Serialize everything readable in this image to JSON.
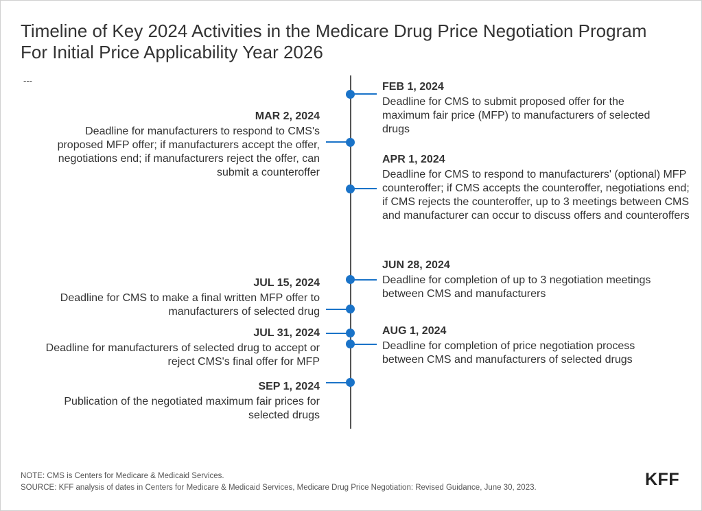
{
  "title_lines": [
    "Timeline of Key 2024 Activities in the Medicare Drug Price Negotiation Program",
    "For Initial Price Applicability Year 2026"
  ],
  "subtitle_placeholder": "---",
  "events": [
    {
      "date": "FEB 1, 2024",
      "side": "right",
      "description": "Deadline for CMS to submit proposed offer for the maximum fair price (MFP) to manufacturers of selected drugs"
    },
    {
      "date": "MAR 2, 2024",
      "side": "left",
      "description": "Deadline for manufacturers to respond to CMS's proposed MFP offer; if manufacturers accept the offer, negotiations end; if manufacturers reject the offer, can submit a counteroffer"
    },
    {
      "date": "APR 1, 2024",
      "side": "right",
      "description": "Deadline for CMS to respond to manufacturers' (optional) MFP counteroffer; if CMS accepts the counteroffer, negotiations end; if CMS rejects the counteroffer, up to 3 meetings between CMS and manufacturer can occur to discuss offers and counteroffers"
    },
    {
      "date": "JUN 28, 2024",
      "side": "right",
      "description": "Deadline for completion of up to 3 negotiation meetings between CMS and manufacturers"
    },
    {
      "date": "JUL 15, 2024",
      "side": "left",
      "description": "Deadline for CMS to make a final written MFP offer to manufacturers of selected drug"
    },
    {
      "date": "JUL 31, 2024",
      "side": "left",
      "description": "Deadline for manufacturers of selected drug to accept or reject CMS's final offer for MFP"
    },
    {
      "date": "AUG 1, 2024",
      "side": "right",
      "description": "Deadline for completion of price negotiation process between CMS and manufacturers of selected drugs"
    },
    {
      "date": "SEP 1, 2024",
      "side": "left",
      "description": "Publication of the negotiated maximum fair prices for selected drugs"
    }
  ],
  "note": "NOTE: CMS is Centers for Medicare & Medicaid Services.",
  "source": "SOURCE: KFF analysis of dates in Centers for Medicare & Medicaid Services, Medicare Drug Price Negotiation: Revised Guidance, June 30, 2023.",
  "logo_text": "KFF",
  "colors": {
    "accent": "#1a73c8",
    "axis": "#555555",
    "text": "#333333"
  }
}
